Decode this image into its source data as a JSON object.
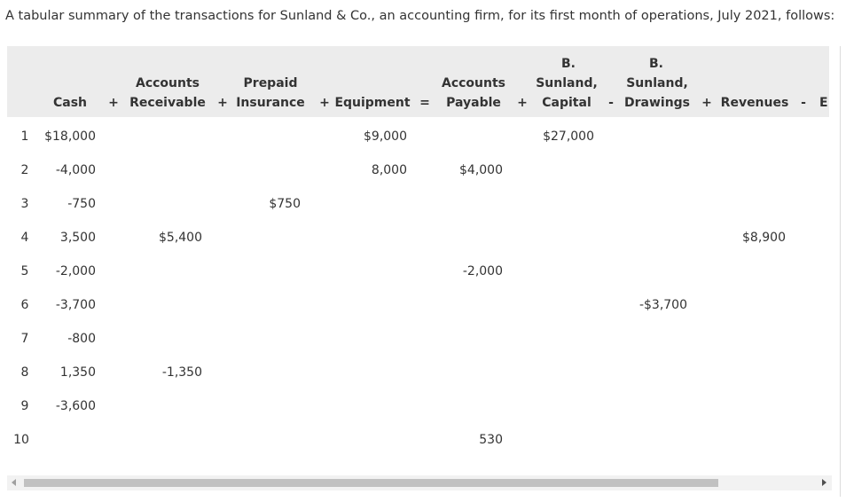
{
  "intro": "A tabular summary of the transactions for Sunland & Co., an accounting firm, for its first month of operations, July 2021, follows:",
  "headers": {
    "cash": "Cash",
    "plus1": "+",
    "ar_top": "Accounts",
    "ar_bottom": "Receivable",
    "plus2": "+",
    "pi_top": "Prepaid",
    "pi_bottom": "Insurance",
    "plus3": "+",
    "equipment": "Equipment",
    "equals": "=",
    "ap_top": "Accounts",
    "ap_bottom": "Payable",
    "plus4": "+",
    "cap_line1": "B.",
    "cap_line2": "Sunland,",
    "cap_line3": "Capital",
    "minus1": "-",
    "dr_line1": "B.",
    "dr_line2": "Sunland,",
    "dr_line3": "Drawings",
    "plus5": "+",
    "revenues": "Revenues",
    "minus2": "-",
    "expenses_partial": "E:"
  },
  "rows": [
    {
      "no": "1",
      "cash": "$18,000",
      "ar": "",
      "pi": "",
      "equip": "$9,000",
      "ap": "",
      "cap": "$27,000",
      "dr": "",
      "rev": ""
    },
    {
      "no": "2",
      "cash": "-4,000",
      "ar": "",
      "pi": "",
      "equip": "8,000",
      "ap": "$4,000",
      "cap": "",
      "dr": "",
      "rev": ""
    },
    {
      "no": "3",
      "cash": "-750",
      "ar": "",
      "pi": "$750",
      "equip": "",
      "ap": "",
      "cap": "",
      "dr": "",
      "rev": ""
    },
    {
      "no": "4",
      "cash": "3,500",
      "ar": "$5,400",
      "pi": "",
      "equip": "",
      "ap": "",
      "cap": "",
      "dr": "",
      "rev": "$8,900"
    },
    {
      "no": "5",
      "cash": "-2,000",
      "ar": "",
      "pi": "",
      "equip": "",
      "ap": "-2,000",
      "cap": "",
      "dr": "",
      "rev": ""
    },
    {
      "no": "6",
      "cash": "-3,700",
      "ar": "",
      "pi": "",
      "equip": "",
      "ap": "",
      "cap": "",
      "dr": "-$3,700",
      "rev": ""
    },
    {
      "no": "7",
      "cash": "-800",
      "ar": "",
      "pi": "",
      "equip": "",
      "ap": "",
      "cap": "",
      "dr": "",
      "rev": ""
    },
    {
      "no": "8",
      "cash": "1,350",
      "ar": "-1,350",
      "pi": "",
      "equip": "",
      "ap": "",
      "cap": "",
      "dr": "",
      "rev": ""
    },
    {
      "no": "9",
      "cash": "-3,600",
      "ar": "",
      "pi": "",
      "equip": "",
      "ap": "",
      "cap": "",
      "dr": "",
      "rev": ""
    },
    {
      "no": "10",
      "cash": "",
      "ar": "",
      "pi": "",
      "equip": "",
      "ap": "530",
      "cap": "",
      "dr": "",
      "rev": ""
    }
  ]
}
